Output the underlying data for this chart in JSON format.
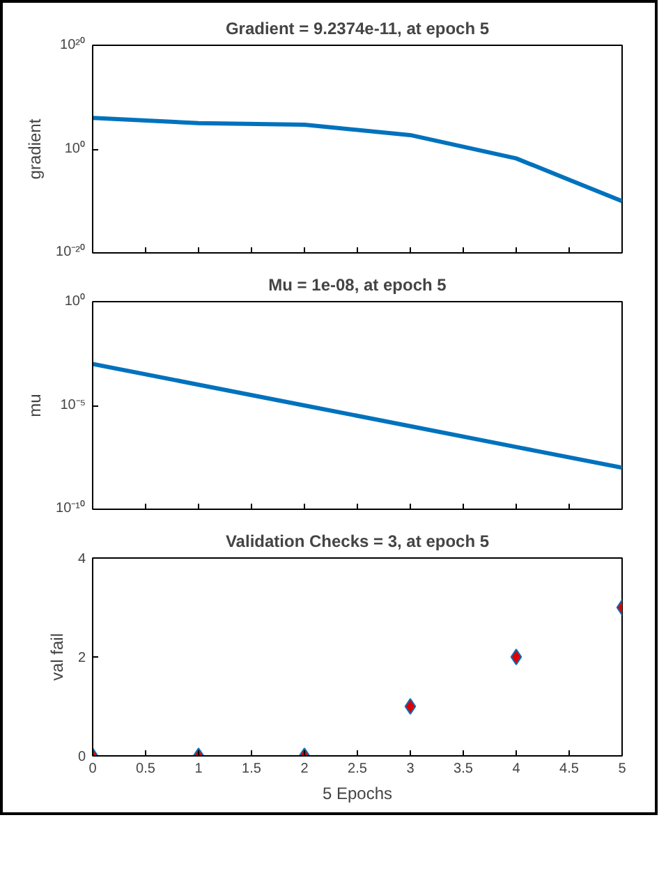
{
  "chart_data": [
    {
      "type": "line",
      "title": "Gradient = 9.2374e-11, at epoch 5",
      "ylabel": "gradient",
      "log": "y",
      "x": [
        0,
        1,
        2,
        3,
        4,
        5
      ],
      "series": [
        {
          "color": "#0072bd",
          "values": [
            1000000.0,
            100000.0,
            50000.0,
            500,
            0.016,
            9.2374e-11
          ]
        }
      ],
      "xlim": [
        0,
        5
      ],
      "xticks": [
        {
          "value": 0,
          "label": null
        },
        {
          "value": 0.5,
          "label": null
        },
        {
          "value": 1,
          "label": null
        },
        {
          "value": 1.5,
          "label": null
        },
        {
          "value": 2,
          "label": null
        },
        {
          "value": 2.5,
          "label": null
        },
        {
          "value": 3,
          "label": null
        },
        {
          "value": 3.5,
          "label": null
        },
        {
          "value": 4,
          "label": null
        },
        {
          "value": 4.5,
          "label": null
        },
        {
          "value": 5,
          "label": null
        }
      ],
      "ylim": [
        1e-20,
        1e+20
      ],
      "yticks": [
        {
          "value": 1e-20,
          "label": "10⁻²⁰"
        },
        {
          "value": 1,
          "label": "10⁰"
        },
        {
          "value": 1e+20,
          "label": "10²⁰"
        }
      ],
      "tick_labels": "y",
      "grid": false,
      "line_style": "solid"
    },
    {
      "type": "line",
      "title": "Mu = 1e-08, at epoch 5",
      "ylabel": "mu",
      "log": "y",
      "x": [
        0,
        1,
        2,
        3,
        4,
        5
      ],
      "series": [
        {
          "color": "#0072bd",
          "values": [
            0.001,
            0.0001,
            1e-05,
            1e-06,
            1e-07,
            1e-08
          ]
        }
      ],
      "xlim": [
        0,
        5
      ],
      "xticks": [
        {
          "value": 0,
          "label": null
        },
        {
          "value": 0.5,
          "label": null
        },
        {
          "value": 1,
          "label": null
        },
        {
          "value": 1.5,
          "label": null
        },
        {
          "value": 2,
          "label": null
        },
        {
          "value": 2.5,
          "label": null
        },
        {
          "value": 3,
          "label": null
        },
        {
          "value": 3.5,
          "label": null
        },
        {
          "value": 4,
          "label": null
        },
        {
          "value": 4.5,
          "label": null
        },
        {
          "value": 5,
          "label": null
        }
      ],
      "ylim": [
        1e-10,
        1
      ],
      "yticks": [
        {
          "value": 1e-10,
          "label": "10⁻¹⁰"
        },
        {
          "value": 1e-05,
          "label": "10⁻⁵"
        },
        {
          "value": 1,
          "label": "10⁰"
        }
      ],
      "tick_labels": "y",
      "grid": false,
      "line_style": "solid"
    },
    {
      "type": "scatter",
      "title": "Validation Checks = 3, at epoch 5",
      "ylabel": "val fail",
      "xlabel": "5 Epochs",
      "x": [
        0,
        1,
        2,
        3,
        4,
        5
      ],
      "series": [
        {
          "color": "#e00000",
          "values": [
            0,
            0,
            0,
            1,
            2,
            3
          ]
        }
      ],
      "marker": "diamond",
      "xlim": [
        0,
        5
      ],
      "xticks": [
        0,
        0.5,
        1,
        1.5,
        2,
        2.5,
        3,
        3.5,
        4,
        4.5,
        5
      ],
      "ylim": [
        0,
        4
      ],
      "yticks": [
        0,
        2,
        4
      ],
      "grid": false
    }
  ]
}
